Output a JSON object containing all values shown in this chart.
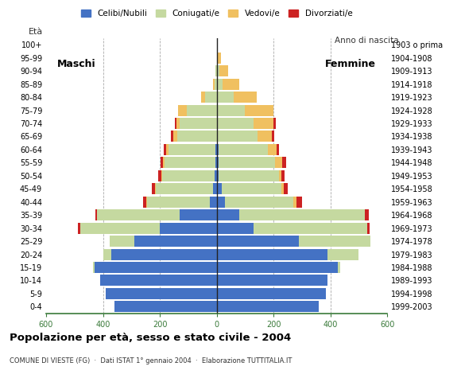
{
  "age_groups": [
    "0-4",
    "5-9",
    "10-14",
    "15-19",
    "20-24",
    "25-29",
    "30-34",
    "35-39",
    "40-44",
    "45-49",
    "50-54",
    "55-59",
    "60-64",
    "65-69",
    "70-74",
    "75-79",
    "80-84",
    "85-89",
    "90-94",
    "95-99",
    "100+"
  ],
  "birth_years": [
    "1999-2003",
    "1994-1998",
    "1989-1993",
    "1984-1988",
    "1979-1983",
    "1974-1978",
    "1969-1973",
    "1964-1968",
    "1959-1963",
    "1954-1958",
    "1949-1953",
    "1944-1948",
    "1939-1943",
    "1934-1938",
    "1929-1933",
    "1924-1928",
    "1919-1923",
    "1914-1918",
    "1909-1913",
    "1904-1908",
    "1903 o prima"
  ],
  "males": {
    "celibi": [
      360,
      390,
      410,
      430,
      370,
      290,
      200,
      130,
      24,
      14,
      6,
      4,
      4,
      0,
      0,
      0,
      0,
      0,
      0,
      0,
      0
    ],
    "coniugati": [
      0,
      0,
      0,
      5,
      30,
      85,
      280,
      290,
      220,
      200,
      185,
      180,
      165,
      140,
      130,
      105,
      40,
      8,
      4,
      0,
      0
    ],
    "vedovi": [
      0,
      0,
      0,
      0,
      0,
      0,
      0,
      0,
      4,
      4,
      4,
      4,
      8,
      14,
      12,
      30,
      15,
      6,
      0,
      0,
      0
    ],
    "divorziati": [
      0,
      0,
      0,
      0,
      0,
      0,
      8,
      8,
      10,
      10,
      10,
      10,
      8,
      8,
      6,
      0,
      0,
      0,
      0,
      0,
      0
    ]
  },
  "females": {
    "celibi": [
      360,
      385,
      390,
      425,
      390,
      290,
      130,
      80,
      30,
      18,
      8,
      6,
      6,
      0,
      0,
      0,
      0,
      0,
      0,
      0,
      0
    ],
    "coniugati": [
      0,
      0,
      0,
      10,
      110,
      250,
      400,
      440,
      240,
      210,
      210,
      200,
      175,
      145,
      130,
      100,
      60,
      20,
      10,
      4,
      0
    ],
    "vedovi": [
      0,
      0,
      0,
      0,
      0,
      0,
      0,
      0,
      10,
      8,
      10,
      25,
      30,
      50,
      70,
      100,
      80,
      60,
      30,
      10,
      4
    ],
    "divorziati": [
      0,
      0,
      0,
      0,
      0,
      0,
      8,
      14,
      20,
      14,
      12,
      12,
      8,
      8,
      8,
      0,
      0,
      0,
      0,
      0,
      0
    ]
  },
  "colors": {
    "celibi": "#4472c4",
    "coniugati": "#c5d9a0",
    "vedovi": "#f0c060",
    "divorziati": "#cc2222"
  },
  "title": "Popolazione per età, sesso e stato civile - 2004",
  "subtitle": "COMUNE DI VIESTE (FG)  ·  Dati ISTAT 1° gennaio 2004  ·  Elaborazione TUTTITALIA.IT",
  "ylabel_left": "Età",
  "ylabel_right": "Anno di nascita",
  "label_maschi": "Maschi",
  "label_femmine": "Femmine",
  "legend_labels": [
    "Celibi/Nubili",
    "Coniugati/e",
    "Vedovi/e",
    "Divorziati/e"
  ],
  "xlim": 600,
  "background_color": "#ffffff",
  "grid_color": "#aaaaaa"
}
